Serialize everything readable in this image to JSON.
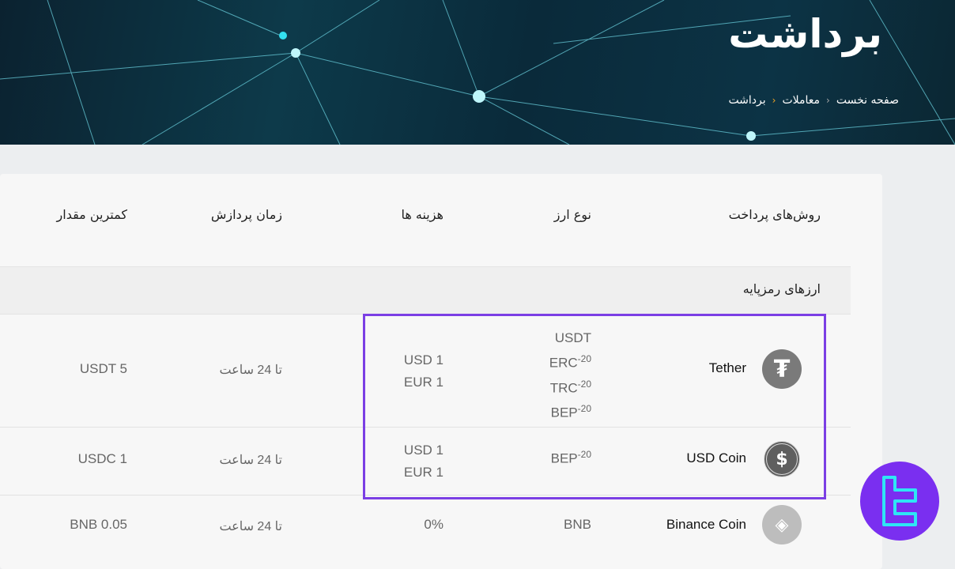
{
  "header": {
    "title": "برداشت",
    "breadcrumb": [
      "صفحه نخست",
      "معاملات",
      "برداشت"
    ]
  },
  "table": {
    "columns": [
      "روش‌های پرداخت",
      "نوع ارز",
      "هزینه ها",
      "زمان پردازش",
      "کمترین مقدار"
    ],
    "category": "ارزهای رمزپایه",
    "rows": [
      {
        "icon": "tether-icon",
        "name": "Tether",
        "types": [
          "USDT",
          "ERC",
          "TRC",
          "BEP"
        ],
        "type_sup": "-20",
        "fees": [
          "USD 1",
          "EUR 1"
        ],
        "time": "تا 24 ساعت",
        "min": "USDT 5"
      },
      {
        "icon": "usd-coin-icon",
        "name": "USD Coin",
        "types": [
          "BEP"
        ],
        "type_sup": "-20",
        "fees": [
          "USD 1",
          "EUR 1"
        ],
        "time": "تا 24 ساعت",
        "min": "USDC 1"
      },
      {
        "icon": "binance-coin-icon",
        "name": "Binance Coin",
        "types": [
          "BNB"
        ],
        "fees": [
          "0%"
        ],
        "time": "تا 24 ساعت",
        "min": "BNB 0.05"
      }
    ]
  },
  "colors": {
    "highlight": "#7b3fe4",
    "logo": "#7a2ff0",
    "logo_glyph": "#2ee6f5"
  }
}
